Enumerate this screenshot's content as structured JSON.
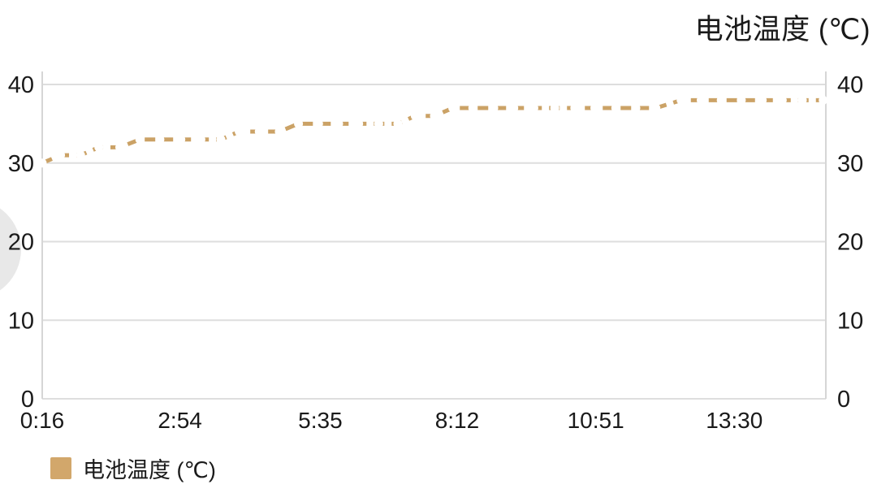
{
  "chart": {
    "title": "电池温度 (℃)",
    "legend_label": "电池温度 (℃)"
  },
  "colors": {
    "background": "#ffffff",
    "line": "#cba266",
    "legend_swatch": "#d2a76b",
    "grid": "#dedede",
    "axis": "#d6d6d6",
    "text": "#1a1a1a",
    "marker_fill": "#ffffff",
    "edge_circle": "#e8e8e8"
  },
  "chart_data": {
    "type": "line",
    "title": "电池温度 (℃)",
    "xlabel": "",
    "ylabel": "",
    "legend_entries": [
      "电池温度 (℃)"
    ],
    "legend_position": "bottom-left",
    "line_style": "dashed",
    "marker_style": "white-dots",
    "grid": "horizontal-only",
    "x_axis": {
      "type": "time",
      "tick_labels": [
        "0:16",
        "2:54",
        "5:35",
        "8:12",
        "10:51",
        "13:30"
      ],
      "range_minutes": [
        16,
        915
      ]
    },
    "y_axis": {
      "tick_labels": [
        "0",
        "10",
        "20",
        "30",
        "40"
      ],
      "tick_values": [
        0,
        10,
        20,
        30,
        40
      ],
      "range": [
        0,
        40
      ],
      "sides": [
        "left",
        "right"
      ]
    },
    "series": [
      {
        "name": "电池温度 (℃)",
        "color": "#cba266",
        "points": [
          [
            "0:16",
            30
          ],
          [
            "0:37",
            31
          ],
          [
            "1:00",
            31
          ],
          [
            "1:21",
            32
          ],
          [
            "1:45",
            32
          ],
          [
            "2:08",
            33
          ],
          [
            "2:31",
            33
          ],
          [
            "2:55",
            33
          ],
          [
            "3:18",
            33
          ],
          [
            "3:41",
            33
          ],
          [
            "4:02",
            34
          ],
          [
            "4:25",
            34
          ],
          [
            "4:48",
            34
          ],
          [
            "5:10",
            35
          ],
          [
            "5:33",
            35
          ],
          [
            "5:56",
            35
          ],
          [
            "6:19",
            35
          ],
          [
            "6:42",
            35
          ],
          [
            "7:04",
            35
          ],
          [
            "7:24",
            36
          ],
          [
            "7:46",
            36
          ],
          [
            "8:07",
            37
          ],
          [
            "8:30",
            37
          ],
          [
            "8:54",
            37
          ],
          [
            "9:17",
            37
          ],
          [
            "9:40",
            37
          ],
          [
            "10:04",
            37
          ],
          [
            "10:27",
            37
          ],
          [
            "10:50",
            37
          ],
          [
            "11:14",
            37
          ],
          [
            "11:37",
            37
          ],
          [
            "12:00",
            37
          ],
          [
            "12:29",
            38
          ],
          [
            "12:52",
            38
          ],
          [
            "13:15",
            38
          ],
          [
            "13:38",
            38
          ],
          [
            "14:02",
            38
          ],
          [
            "14:25",
            38
          ],
          [
            "14:48",
            38
          ],
          [
            "15:12",
            38
          ]
        ]
      }
    ]
  }
}
